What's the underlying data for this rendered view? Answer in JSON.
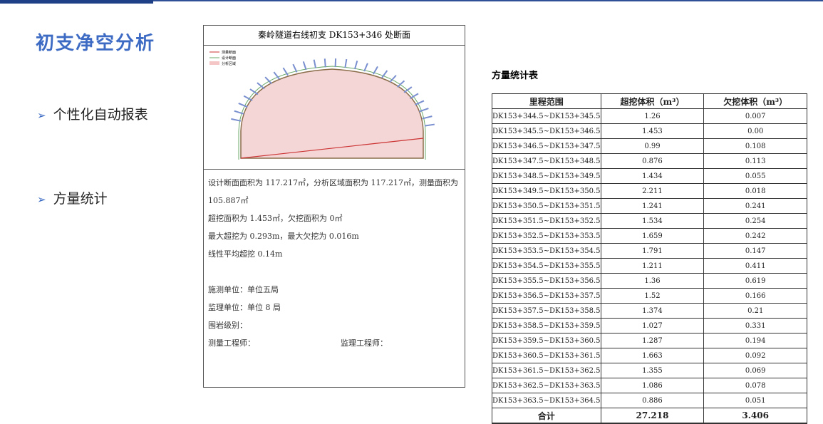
{
  "slide": {
    "title": "初支净空分析",
    "bullets": [
      "个性化自动报表",
      "方量统计"
    ]
  },
  "report": {
    "heading": "秦岭隧道右线初支 DK153+346 处断面",
    "legend": [
      "测量断面",
      "设计断面",
      "分析区域"
    ],
    "lines": [
      "设计断面面积为 117.217㎡，分析区域面积为 117.217㎡，测量面积为 105.887㎡",
      "超挖面积为 1.453㎡，欠挖面积为 0㎡",
      "最大超挖为 0.293m，最大欠挖为 0.016m",
      "线性平均超挖 0.14m",
      "施测单位：单位五局",
      "监理单位：单位 8 局",
      "围岩级别：",
      "测量工程师：",
      "监理工程师："
    ]
  },
  "table": {
    "title": "方量统计表",
    "header": [
      "里程范围",
      "超挖体积（m³）",
      "欠挖体积（m³）"
    ],
    "rows": [
      [
        "DK153+344.5~DK153+345.5",
        "1.26",
        "0.007"
      ],
      [
        "DK153+345.5~DK153+346.5",
        "1.453",
        "0.00"
      ],
      [
        "DK153+346.5~DK153+347.5",
        "0.99",
        "0.108"
      ],
      [
        "DK153+347.5~DK153+348.5",
        "0.876",
        "0.113"
      ],
      [
        "DK153+348.5~DK153+349.5",
        "1.434",
        "0.055"
      ],
      [
        "DK153+349.5~DK153+350.5",
        "2.211",
        "0.018"
      ],
      [
        "DK153+350.5~DK153+351.5",
        "1.241",
        "0.241"
      ],
      [
        "DK153+351.5~DK153+352.5",
        "1.534",
        "0.254"
      ],
      [
        "DK153+352.5~DK153+353.5",
        "1.659",
        "0.242"
      ],
      [
        "DK153+353.5~DK153+354.5",
        "1.791",
        "0.147"
      ],
      [
        "DK153+354.5~DK153+355.5",
        "1.211",
        "0.411"
      ],
      [
        "DK153+355.5~DK153+356.5",
        "1.36",
        "0.619"
      ],
      [
        "DK153+356.5~DK153+357.5",
        "1.52",
        "0.166"
      ],
      [
        "DK153+357.5~DK153+358.5",
        "1.374",
        "0.21"
      ],
      [
        "DK153+358.5~DK153+359.5",
        "1.027",
        "0.331"
      ],
      [
        "DK153+359.5~DK153+360.5",
        "1.287",
        "0.194"
      ],
      [
        "DK153+360.5~DK153+361.5",
        "1.663",
        "0.092"
      ],
      [
        "DK153+361.5~DK153+362.5",
        "1.355",
        "0.069"
      ],
      [
        "DK153+362.5~DK153+363.5",
        "1.086",
        "0.078"
      ],
      [
        "DK153+363.5~DK153+364.5",
        "0.886",
        "0.051"
      ]
    ],
    "total": [
      "合计",
      "27.218",
      "3.406"
    ]
  }
}
